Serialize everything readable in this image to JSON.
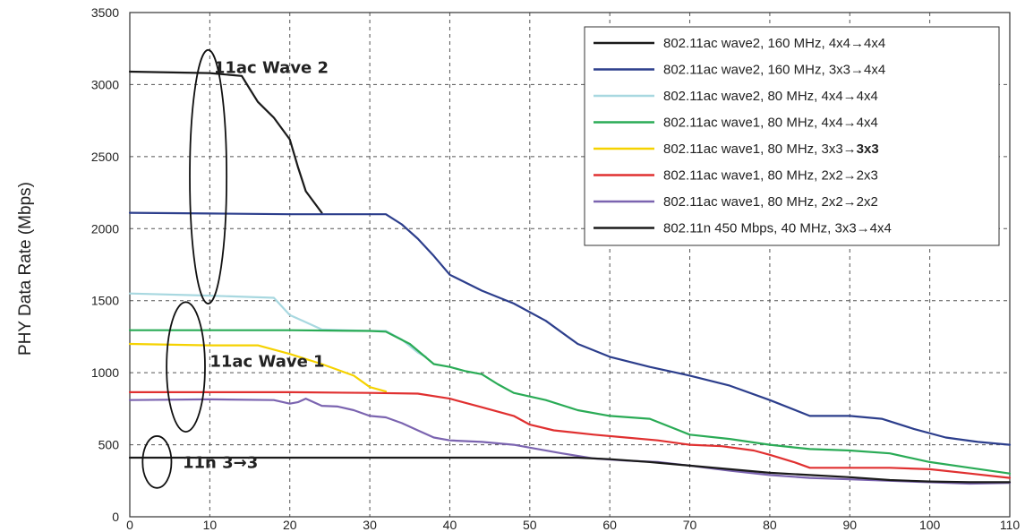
{
  "chart_data": {
    "type": "line",
    "title": "",
    "xlabel": "",
    "ylabel": "PHY Data Rate (Mbps)",
    "xlim": [
      0,
      110
    ],
    "ylim": [
      0,
      3500
    ],
    "xticks": [
      0,
      10,
      20,
      30,
      40,
      50,
      60,
      70,
      80,
      90,
      100,
      110
    ],
    "yticks": [
      0,
      500,
      1000,
      1500,
      2000,
      2500,
      3000,
      3500
    ],
    "grid": true,
    "legend_position": "top-right",
    "series": [
      {
        "name": "802.11ac wave2, 160 MHz, 4x4→4x4",
        "color": "#1a1a1a",
        "bold_suffix": "",
        "points": [
          [
            0,
            3090
          ],
          [
            10,
            3080
          ],
          [
            14,
            3060
          ],
          [
            15,
            2970
          ],
          [
            16,
            2880
          ],
          [
            18,
            2770
          ],
          [
            20,
            2620
          ],
          [
            21,
            2430
          ],
          [
            22,
            2260
          ],
          [
            24,
            2110
          ]
        ]
      },
      {
        "name": "802.11ac wave2, 160 MHz, 3x3→4x4",
        "color": "#2c3e8c",
        "bold_suffix": "",
        "points": [
          [
            0,
            2110
          ],
          [
            10,
            2105
          ],
          [
            20,
            2100
          ],
          [
            30,
            2100
          ],
          [
            32,
            2100
          ],
          [
            34,
            2030
          ],
          [
            36,
            1930
          ],
          [
            38,
            1810
          ],
          [
            40,
            1680
          ],
          [
            44,
            1570
          ],
          [
            48,
            1480
          ],
          [
            52,
            1360
          ],
          [
            56,
            1200
          ],
          [
            60,
            1110
          ],
          [
            65,
            1040
          ],
          [
            70,
            980
          ],
          [
            75,
            910
          ],
          [
            80,
            810
          ],
          [
            85,
            700
          ],
          [
            90,
            700
          ],
          [
            94,
            680
          ],
          [
            98,
            610
          ],
          [
            102,
            550
          ],
          [
            106,
            520
          ],
          [
            110,
            500
          ]
        ]
      },
      {
        "name": "802.11ac wave2, 80 MHz, 4x4→4x4",
        "color": "#a8d8e0",
        "bold_suffix": "",
        "points": [
          [
            0,
            1550
          ],
          [
            10,
            1535
          ],
          [
            18,
            1520
          ],
          [
            20,
            1400
          ],
          [
            22,
            1350
          ],
          [
            24,
            1300
          ],
          [
            30,
            1290
          ],
          [
            32,
            1290
          ],
          [
            34,
            1230
          ],
          [
            36,
            1140
          ],
          [
            37,
            1110
          ]
        ]
      },
      {
        "name": "802.11ac wave1, 80 MHz, 4x4→4x4",
        "color": "#2aab56",
        "bold_suffix": "",
        "points": [
          [
            0,
            1295
          ],
          [
            10,
            1295
          ],
          [
            20,
            1295
          ],
          [
            30,
            1290
          ],
          [
            32,
            1285
          ],
          [
            35,
            1200
          ],
          [
            38,
            1060
          ],
          [
            40,
            1040
          ],
          [
            42,
            1010
          ],
          [
            44,
            990
          ],
          [
            46,
            920
          ],
          [
            48,
            860
          ],
          [
            52,
            810
          ],
          [
            56,
            740
          ],
          [
            60,
            700
          ],
          [
            65,
            680
          ],
          [
            70,
            570
          ],
          [
            75,
            540
          ],
          [
            80,
            500
          ],
          [
            85,
            470
          ],
          [
            90,
            460
          ],
          [
            95,
            440
          ],
          [
            100,
            380
          ],
          [
            105,
            340
          ],
          [
            110,
            300
          ]
        ]
      },
      {
        "name": "802.11ac wave1, 80 MHz, 3x3→",
        "color": "#f5d200",
        "bold_suffix": "3x3",
        "points": [
          [
            0,
            1200
          ],
          [
            10,
            1190
          ],
          [
            16,
            1190
          ],
          [
            20,
            1130
          ],
          [
            24,
            1060
          ],
          [
            28,
            980
          ],
          [
            30,
            900
          ],
          [
            32,
            870
          ]
        ]
      },
      {
        "name": "802.11ac wave1, 80 MHz, 2x2→2x3",
        "color": "#e03030",
        "bold_suffix": "",
        "points": [
          [
            0,
            865
          ],
          [
            10,
            865
          ],
          [
            20,
            865
          ],
          [
            30,
            860
          ],
          [
            36,
            855
          ],
          [
            40,
            820
          ],
          [
            44,
            760
          ],
          [
            48,
            700
          ],
          [
            50,
            640
          ],
          [
            53,
            600
          ],
          [
            58,
            570
          ],
          [
            62,
            550
          ],
          [
            66,
            530
          ],
          [
            70,
            500
          ],
          [
            74,
            490
          ],
          [
            78,
            460
          ],
          [
            80,
            430
          ],
          [
            83,
            380
          ],
          [
            85,
            340
          ],
          [
            90,
            340
          ],
          [
            95,
            340
          ],
          [
            100,
            330
          ],
          [
            105,
            300
          ],
          [
            110,
            270
          ]
        ]
      },
      {
        "name": "802.11ac wave1, 80 MHz, 2x2→2x2",
        "color": "#7b64b0",
        "bold_suffix": "",
        "points": [
          [
            0,
            810
          ],
          [
            10,
            815
          ],
          [
            18,
            810
          ],
          [
            20,
            785
          ],
          [
            21,
            795
          ],
          [
            22,
            820
          ],
          [
            24,
            770
          ],
          [
            26,
            765
          ],
          [
            28,
            740
          ],
          [
            30,
            700
          ],
          [
            32,
            690
          ],
          [
            34,
            650
          ],
          [
            36,
            600
          ],
          [
            38,
            550
          ],
          [
            40,
            530
          ],
          [
            44,
            520
          ],
          [
            48,
            500
          ],
          [
            50,
            480
          ],
          [
            54,
            440
          ],
          [
            58,
            405
          ],
          [
            62,
            390
          ],
          [
            66,
            380
          ],
          [
            70,
            355
          ],
          [
            75,
            320
          ],
          [
            80,
            290
          ],
          [
            85,
            270
          ],
          [
            90,
            260
          ],
          [
            95,
            250
          ],
          [
            100,
            240
          ],
          [
            105,
            230
          ],
          [
            110,
            235
          ]
        ]
      },
      {
        "name": "802.11n 450 Mbps, 40 MHz, 3x3→4x4",
        "color": "#1a1a1a",
        "bold_suffix": "",
        "points": [
          [
            0,
            410
          ],
          [
            10,
            410
          ],
          [
            20,
            410
          ],
          [
            30,
            410
          ],
          [
            40,
            410
          ],
          [
            50,
            410
          ],
          [
            56,
            410
          ],
          [
            60,
            400
          ],
          [
            65,
            380
          ],
          [
            70,
            355
          ],
          [
            75,
            330
          ],
          [
            80,
            305
          ],
          [
            85,
            290
          ],
          [
            90,
            275
          ],
          [
            95,
            255
          ],
          [
            100,
            245
          ],
          [
            105,
            240
          ],
          [
            110,
            240
          ]
        ]
      }
    ],
    "annotations": [
      {
        "text": "11ac Wave 2",
        "x": 10.5,
        "y": 3080
      },
      {
        "text": "11ac Wave 1",
        "x": 10,
        "y": 1040
      },
      {
        "text": "11n 3→3",
        "x": 6.6,
        "y": 340
      }
    ],
    "ellipses": [
      {
        "cx": 9.8,
        "cy": 2360,
        "rx": 2.3,
        "ry": 880
      },
      {
        "cx": 7.0,
        "cy": 1040,
        "rx": 2.4,
        "ry": 450
      },
      {
        "cx": 3.4,
        "cy": 380,
        "rx": 1.8,
        "ry": 180
      }
    ]
  }
}
